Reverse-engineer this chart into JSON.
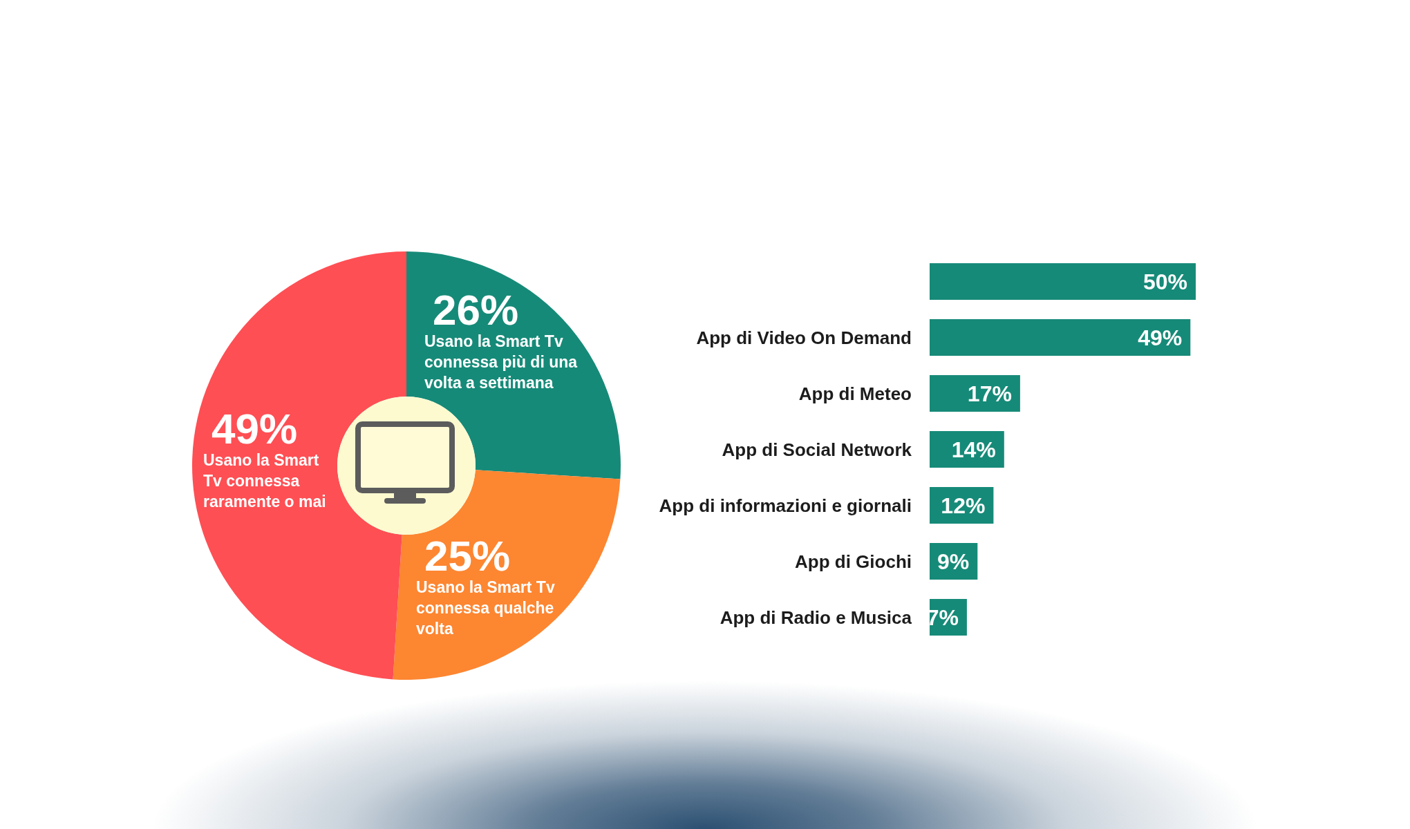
{
  "chart_data": [
    {
      "type": "donut",
      "categories": [
        "Usano la Smart Tv connessa più di una volta a settimana",
        "Usano la Smart Tv connessa qualche volta",
        "Usano la Smart Tv connessa raramente o mai"
      ],
      "values": [
        26,
        25,
        49
      ],
      "colors": [
        "#168a78",
        "#fd8631",
        "#fe4f54"
      ],
      "value_labels": [
        "26%",
        "25%",
        "49%"
      ]
    },
    {
      "type": "bar",
      "orientation": "horizontal",
      "categories": [
        null,
        "App di Video On Demand",
        "App di Meteo",
        "App di Social Network",
        "App di informazioni e giornali",
        "App di Giochi",
        "App di Radio e Musica"
      ],
      "values": [
        50,
        49,
        17,
        14,
        12,
        9,
        7
      ],
      "color": "#168a78",
      "value_labels": [
        "50%",
        "49%",
        "17%",
        "14%",
        "12%",
        "9%",
        "7%"
      ]
    }
  ]
}
